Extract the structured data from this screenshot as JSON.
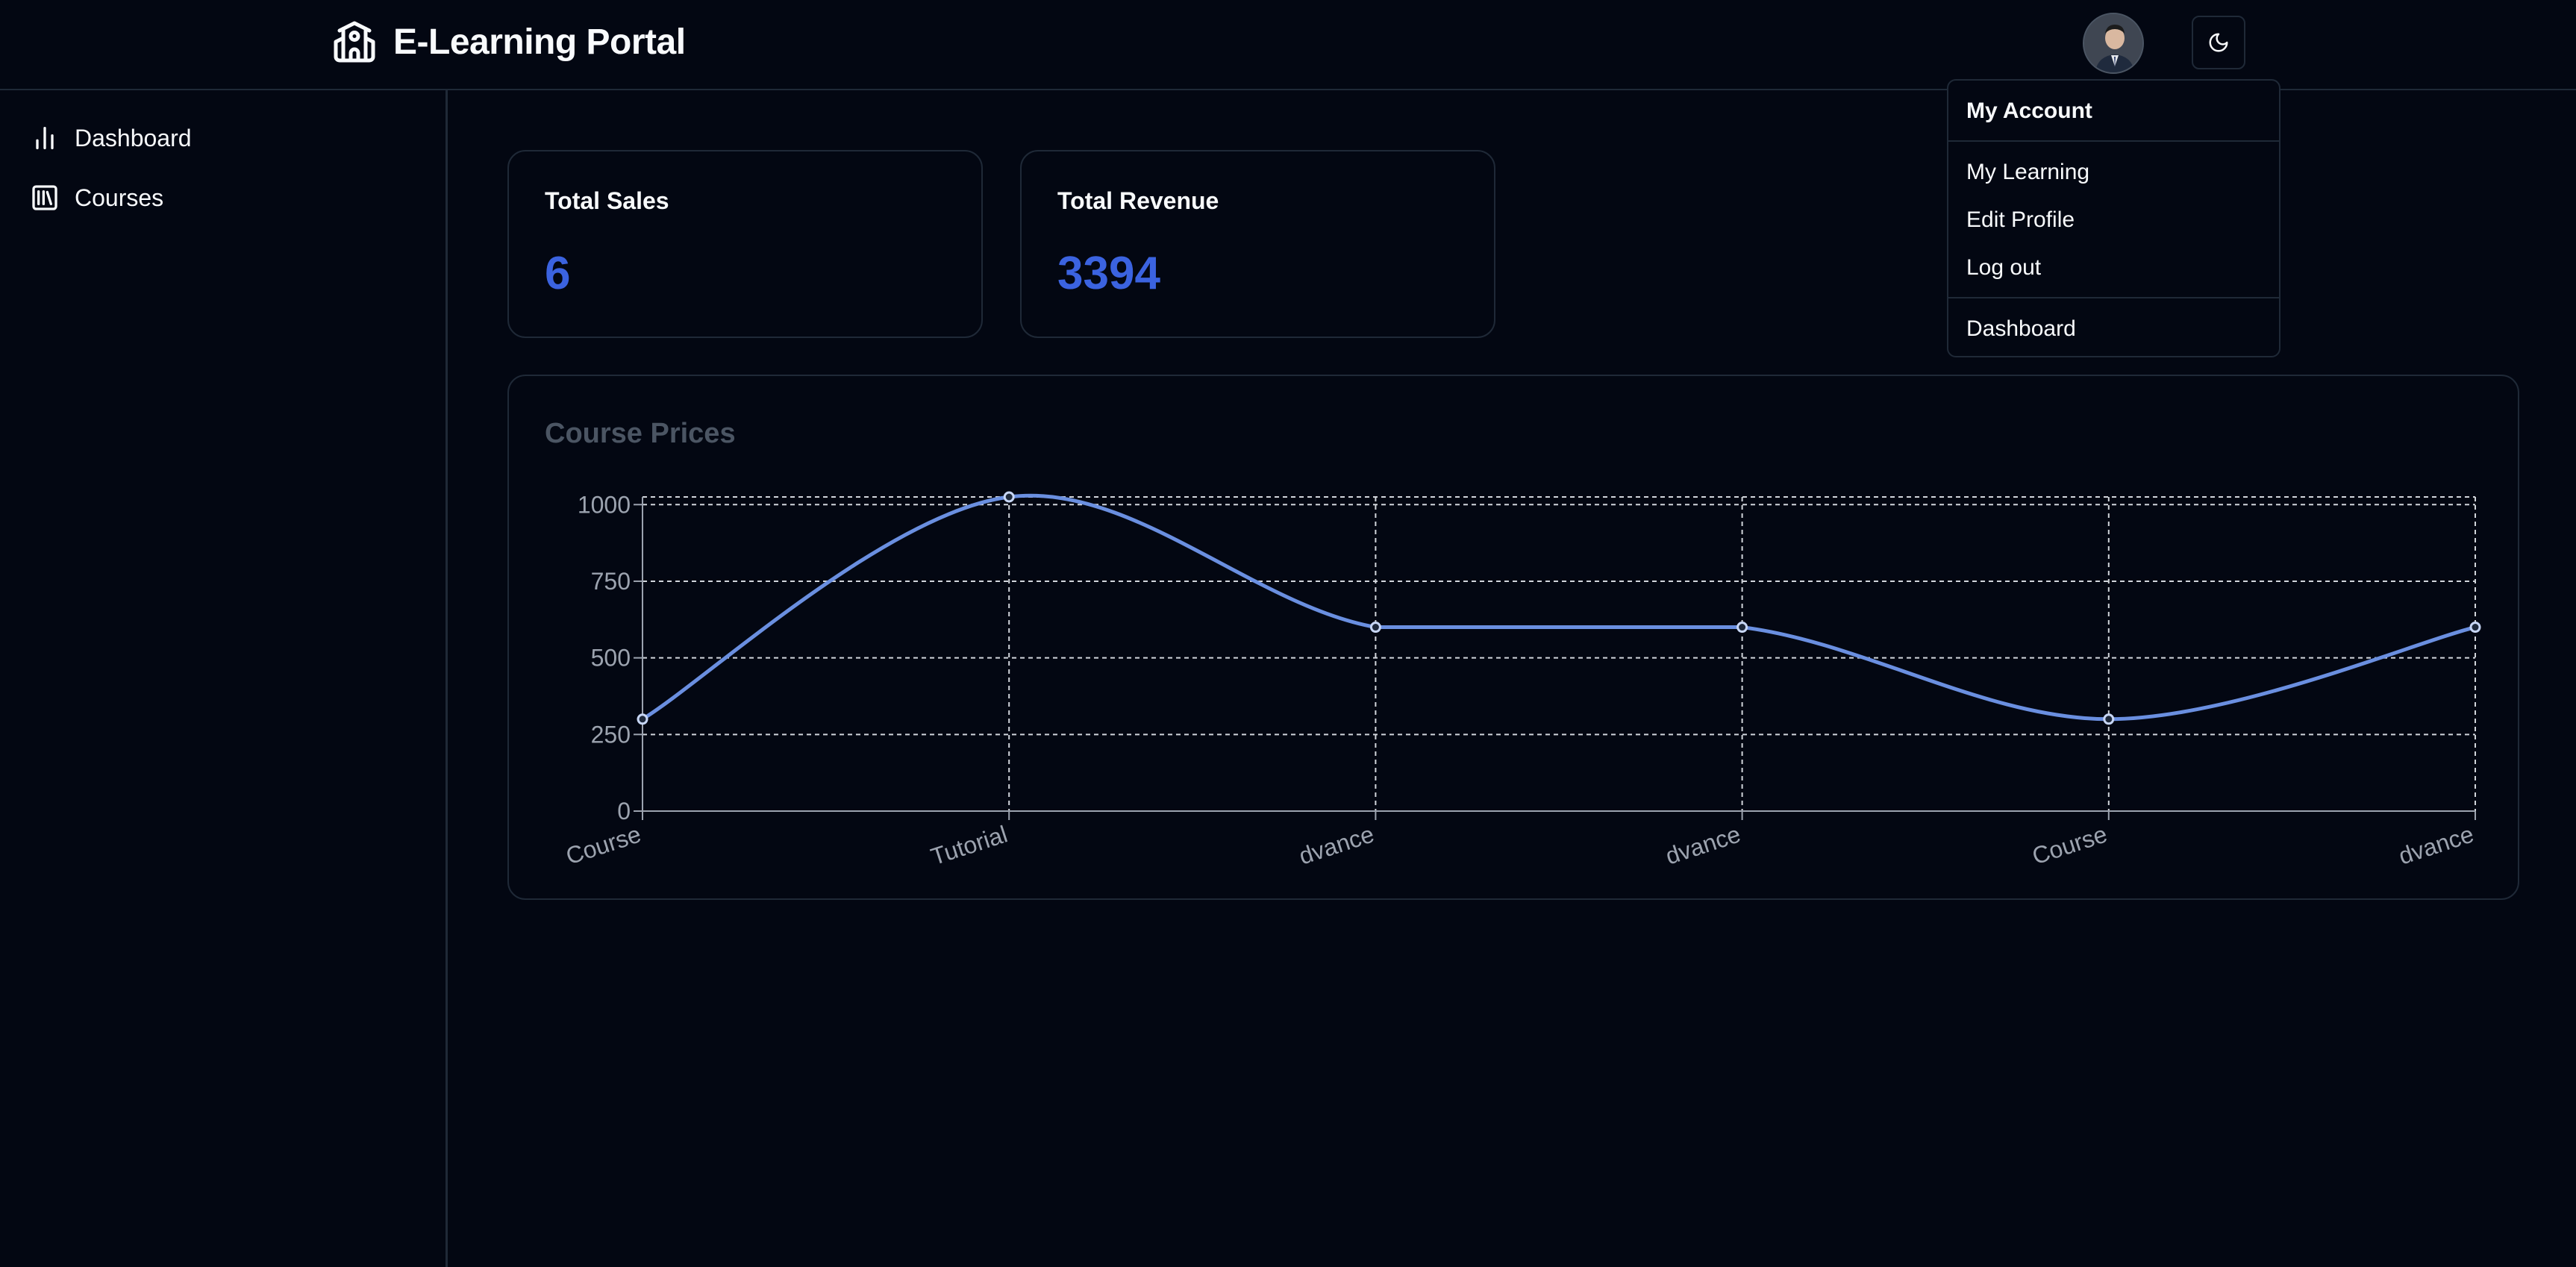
{
  "header": {
    "title": "E-Learning Portal",
    "logo_icon": "school-icon",
    "avatar_icon": "user-avatar",
    "theme_icon": "moon-icon"
  },
  "sidebar": {
    "items": [
      {
        "label": "Dashboard",
        "icon": "bar-chart-icon"
      },
      {
        "label": "Courses",
        "icon": "library-icon"
      }
    ]
  },
  "stats": {
    "total_sales_label": "Total Sales",
    "total_sales_value": "6",
    "total_revenue_label": "Total Revenue",
    "total_revenue_value": "3394"
  },
  "dropdown": {
    "heading": "My Account",
    "items": [
      "My Learning",
      "Edit Profile",
      "Log out"
    ],
    "footer_item": "Dashboard"
  },
  "colors": {
    "background": "#030712",
    "accent": "#3b63e0",
    "line": "#6a8fe0",
    "border": "#1f2937"
  },
  "chart_data": {
    "type": "line",
    "title": "Course Prices",
    "categories": [
      "Course",
      "Tutorial",
      "dvance",
      "dvance",
      "Course",
      "dvance"
    ],
    "series": [
      {
        "values": [
          300,
          1025,
          600,
          600,
          300,
          600
        ]
      }
    ],
    "ylim": [
      0,
      1025
    ],
    "yticks": [
      0,
      250,
      500,
      750,
      1000
    ],
    "grid": true,
    "legend": "none"
  }
}
